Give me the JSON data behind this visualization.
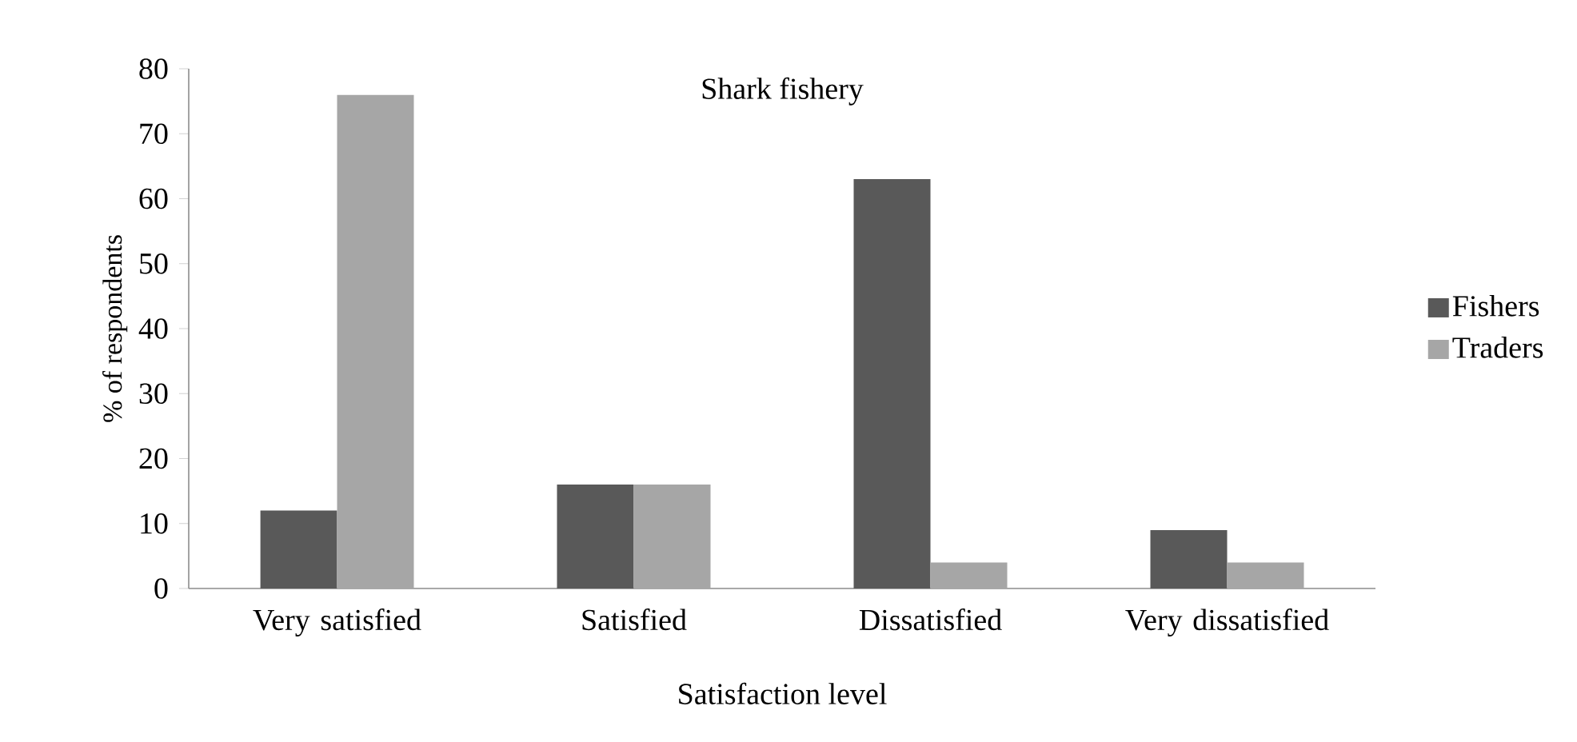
{
  "chart_data": {
    "type": "bar",
    "title": "Shark fishery",
    "xlabel": "Satisfaction level",
    "ylabel": "% of respondents",
    "categories": [
      "Very satisfied",
      "Satisfied",
      "Dissatisfied",
      "Very dissatisfied"
    ],
    "series": [
      {
        "name": "Fishers",
        "color": "#595959",
        "values": [
          12,
          16,
          63,
          9
        ]
      },
      {
        "name": "Traders",
        "color": "#a6a6a6",
        "values": [
          76,
          16,
          4,
          4
        ]
      }
    ],
    "ylim": [
      0,
      80
    ],
    "yticks": [
      0,
      10,
      20,
      30,
      40,
      50,
      60,
      70,
      80
    ],
    "legend": "right"
  }
}
